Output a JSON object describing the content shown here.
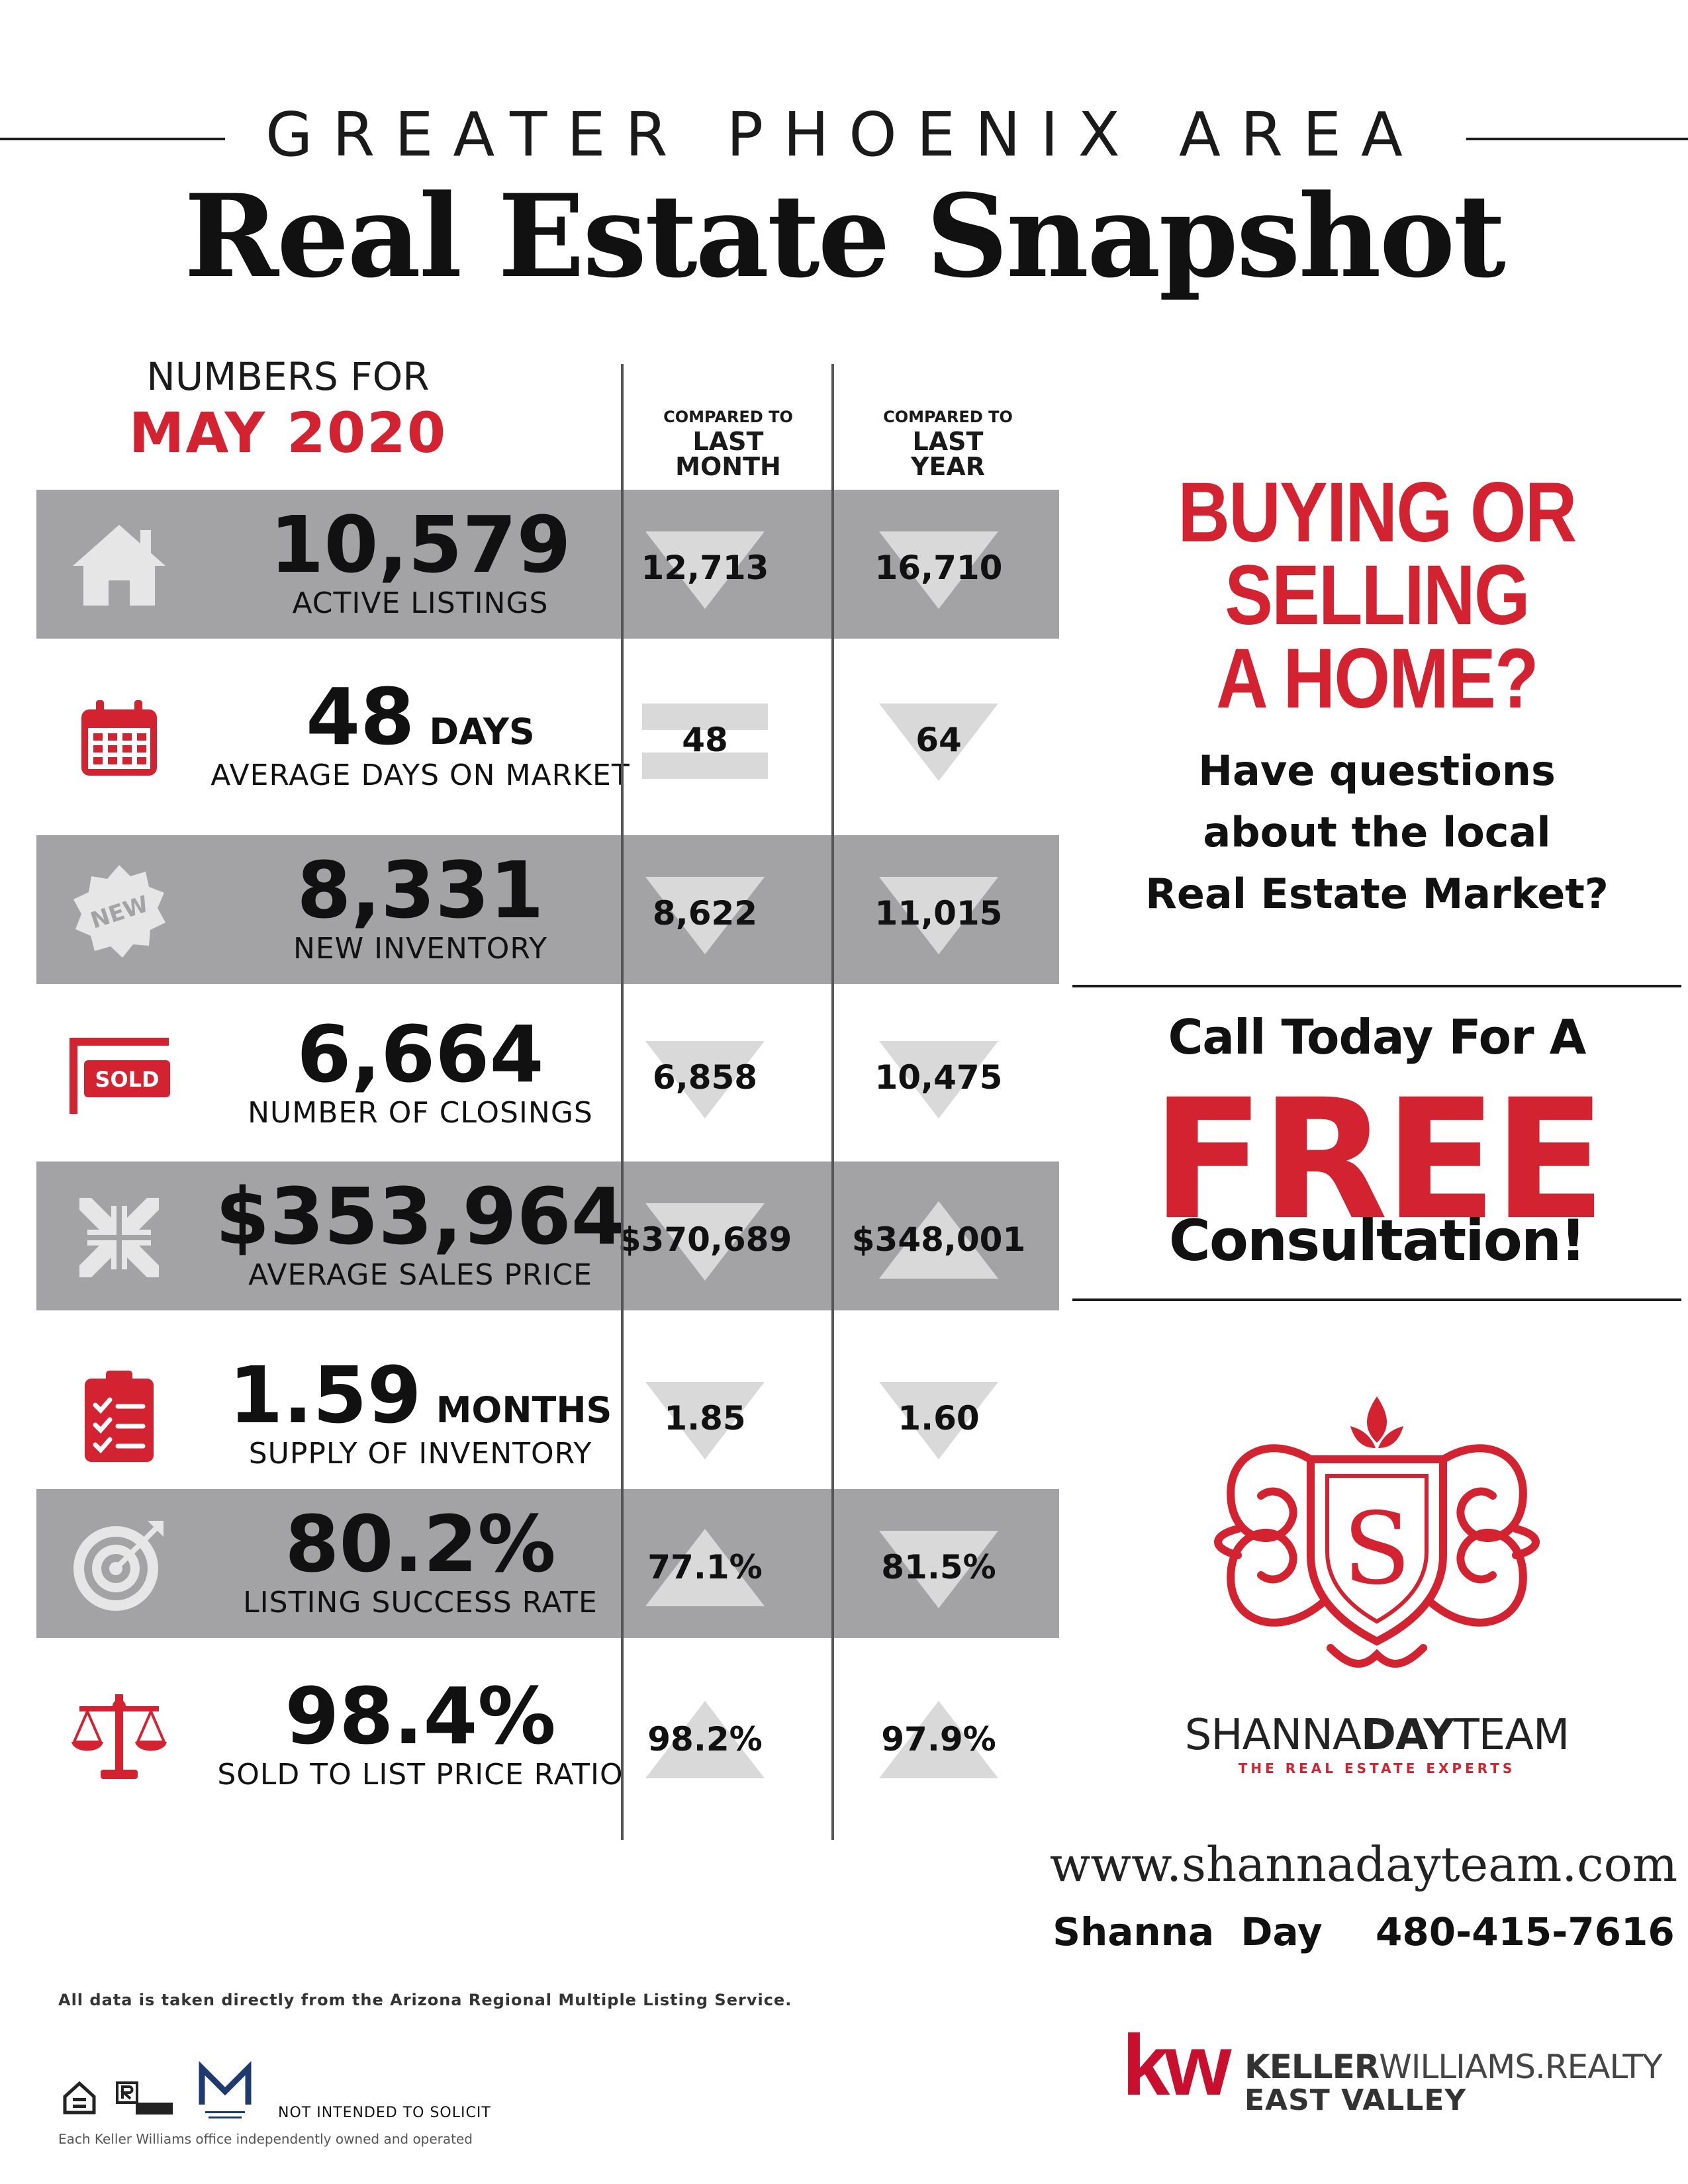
{
  "header": {
    "kicker": "GREATER PHOENIX AREA",
    "title": "Real Estate Snapshot"
  },
  "period": {
    "label": "NUMBERS FOR",
    "month": "MAY 2020"
  },
  "columns": {
    "last_month": {
      "small": "COMPARED TO",
      "big1": "LAST",
      "big2": "MONTH"
    },
    "last_year": {
      "small": "COMPARED TO",
      "big1": "LAST",
      "big2": "YEAR"
    }
  },
  "metrics": [
    {
      "value": "10,579",
      "unit": "",
      "label": "ACTIVE LISTINGS",
      "icon": "house-icon",
      "last_month": "12,713",
      "last_month_trend": "down",
      "last_year": "16,710",
      "last_year_trend": "down"
    },
    {
      "value": "48",
      "unit": "DAYS",
      "label": "AVERAGE DAYS ON MARKET",
      "icon": "calendar-icon",
      "last_month": "48",
      "last_month_trend": "equal",
      "last_year": "64",
      "last_year_trend": "down"
    },
    {
      "value": "8,331",
      "unit": "",
      "label": "NEW INVENTORY",
      "icon": "new-badge-icon",
      "icon_text": "NEW",
      "last_month": "8,622",
      "last_month_trend": "down",
      "last_year": "11,015",
      "last_year_trend": "down"
    },
    {
      "value": "6,664",
      "unit": "",
      "label": "NUMBER OF CLOSINGS",
      "icon": "sold-sign-icon",
      "icon_text": "SOLD",
      "last_month": "6,858",
      "last_month_trend": "down",
      "last_year": "10,475",
      "last_year_trend": "down"
    },
    {
      "value": "$353,964",
      "unit": "",
      "label": "AVERAGE SALES PRICE",
      "icon": "compress-arrows-icon",
      "last_month": "$370,689",
      "last_month_trend": "down",
      "last_year": "$348,001",
      "last_year_trend": "up"
    },
    {
      "value": "1.59",
      "unit": "MONTHS",
      "label": "SUPPLY OF INVENTORY",
      "icon": "clipboard-checklist-icon",
      "last_month": "1.85",
      "last_month_trend": "down",
      "last_year": "1.60",
      "last_year_trend": "down"
    },
    {
      "value": "80.2%",
      "unit": "",
      "label": "LISTING SUCCESS RATE",
      "icon": "target-icon",
      "last_month": "77.1%",
      "last_month_trend": "up",
      "last_year": "81.5%",
      "last_year_trend": "down"
    },
    {
      "value": "98.4%",
      "unit": "",
      "label": "SOLD TO LIST PRICE RATIO",
      "icon": "scales-icon",
      "last_month": "98.2%",
      "last_month_trend": "up",
      "last_year": "97.9%",
      "last_year_trend": "up"
    }
  ],
  "cta": {
    "headline_1": "BUYING OR",
    "headline_2": "SELLING",
    "headline_3": "A HOME?",
    "question_1": "Have questions",
    "question_2": "about the local",
    "question_3": "Real Estate Market?",
    "call": "Call Today For A",
    "free": "FREE",
    "consultation": "Consultation!"
  },
  "team": {
    "logo_letter": "S",
    "name_a": "SHANNA",
    "name_b": "DAY",
    "name_c": "TEAM",
    "tagline": "THE REAL ESTATE EXPERTS",
    "website": "www.shannadayteam.com",
    "agent": "Shanna Day",
    "phone": "480-415-7616"
  },
  "footer": {
    "disclaimer": "All data is taken directly from the Arizona Regional Multiple Listing Service.",
    "not_solicit": "NOT INTENDED TO SOLICIT",
    "owned": "Each Keller Williams office independently owned and operated",
    "kw_mark": "kw",
    "kw_name_a": "KELLER",
    "kw_name_b": "WILLIAMS.",
    "kw_name_c": "REALTY",
    "kw_office": "EAST VALLEY"
  },
  "colors": {
    "accent": "#d42330",
    "row_gray": "#a3a3a5",
    "arrow_light": "#d9d9da"
  }
}
